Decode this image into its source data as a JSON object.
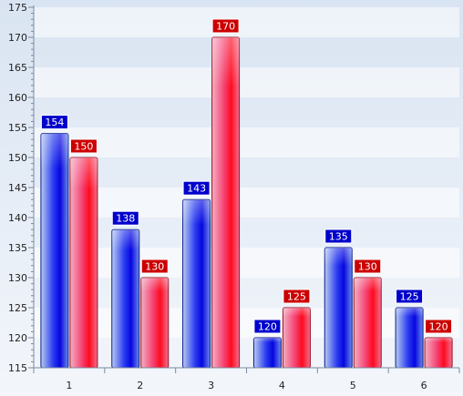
{
  "chart_data": {
    "type": "bar",
    "categories": [
      "1",
      "2",
      "3",
      "4",
      "5",
      "6"
    ],
    "series": [
      {
        "values": [
          154,
          138,
          143,
          120,
          135,
          125
        ],
        "color": "#1010e8",
        "label_bg": "#0000cc"
      },
      {
        "values": [
          150,
          130,
          170,
          125,
          130,
          120
        ],
        "color": "#f01030",
        "label_bg": "#cc0000"
      }
    ],
    "ylim": [
      115,
      175
    ],
    "y_ticks": [
      "115",
      "120",
      "125",
      "130",
      "135",
      "140",
      "145",
      "150",
      "155",
      "160",
      "165",
      "170",
      "175"
    ],
    "grid": "alternating-bands",
    "legend": "none"
  }
}
